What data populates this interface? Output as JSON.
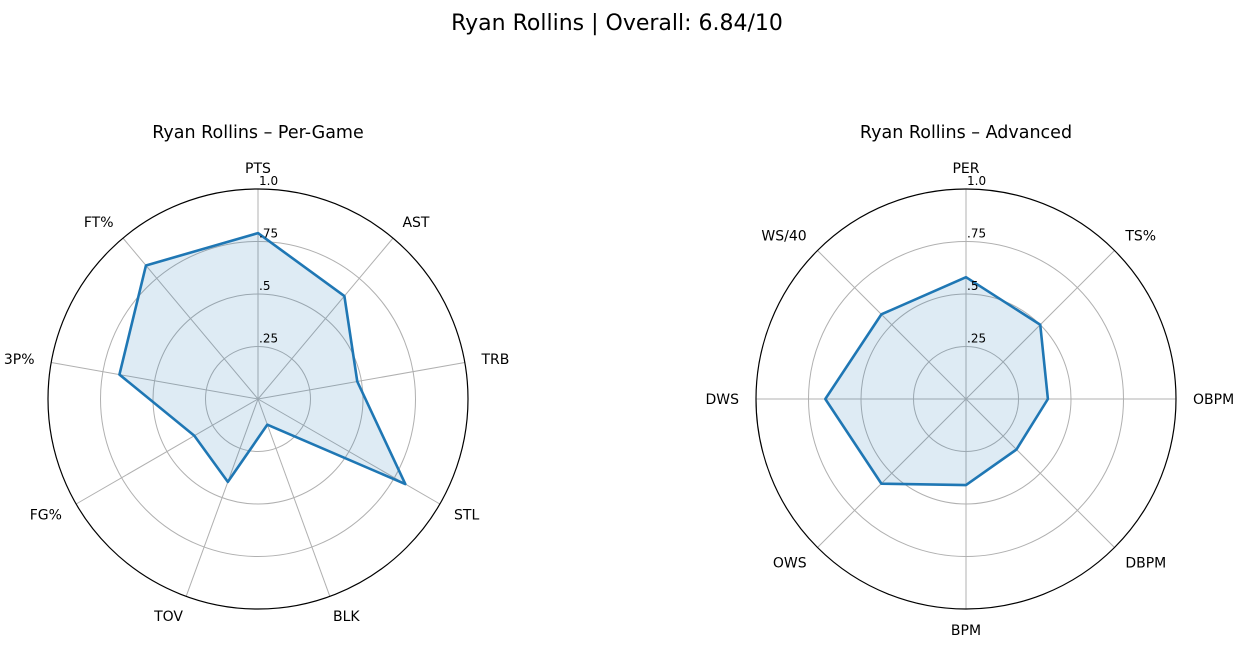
{
  "figure_title": "Ryan Rollins | Overall: 6.84/10",
  "chart_data": [
    {
      "type": "radar",
      "title": "Ryan Rollins – Per-Game",
      "categories": [
        "PTS",
        "AST",
        "TRB",
        "STL",
        "BLK",
        "TOV",
        "FG%",
        "3P%",
        "FT%"
      ],
      "values": [
        0.79,
        0.64,
        0.48,
        0.81,
        0.13,
        0.42,
        0.35,
        0.67,
        0.83
      ],
      "rlim": [
        0,
        1
      ],
      "rticks": [
        0.25,
        0.5,
        0.75,
        1.0
      ],
      "rtick_labels": [
        ".25",
        ".5",
        ".75",
        "1.0"
      ],
      "grid": true,
      "color": "#1f77b4",
      "fill_color": "#1f77b4"
    },
    {
      "type": "radar",
      "title": "Ryan Rollins – Advanced",
      "categories": [
        "PER",
        "TS%",
        "OBPM",
        "DBPM",
        "BPM",
        "OWS",
        "DWS",
        "WS/40"
      ],
      "values": [
        0.58,
        0.5,
        0.39,
        0.34,
        0.41,
        0.57,
        0.67,
        0.57
      ],
      "rlim": [
        0,
        1
      ],
      "rticks": [
        0.25,
        0.5,
        0.75,
        1.0
      ],
      "rtick_labels": [
        ".25",
        ".5",
        ".75",
        "1.0"
      ],
      "grid": true,
      "color": "#1f77b4",
      "fill_color": "#1f77b4"
    }
  ]
}
